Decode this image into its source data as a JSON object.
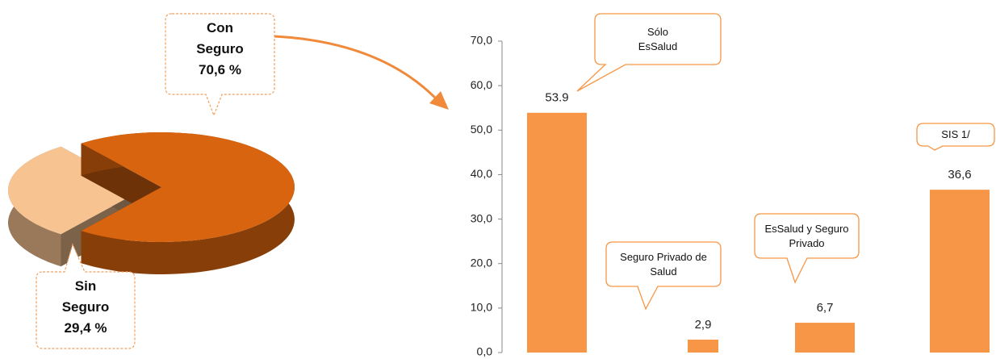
{
  "chart_data": [
    {
      "type": "pie3d",
      "categories": [
        "Con Seguro",
        "Sin Seguro"
      ],
      "values": [
        70.6,
        29.4
      ],
      "value_labels": [
        "70,6 %",
        "29,4 %"
      ],
      "colors": [
        "#d9640f",
        "#f6c391"
      ]
    },
    {
      "type": "bar",
      "categories": [
        "Sólo EsSalud",
        "Seguro Privado de Salud",
        "EsSalud y Seguro Privado",
        "SIS 1/"
      ],
      "values": [
        53.9,
        2.9,
        6.7,
        36.6
      ],
      "value_labels": [
        "53.9",
        "2,9",
        "6,7",
        "36,6"
      ],
      "color": "#f79646",
      "ylim": [
        0,
        70
      ],
      "yticks": [
        {
          "value": 0,
          "label": "0,0"
        },
        {
          "value": 10,
          "label": "10,0"
        },
        {
          "value": 20,
          "label": "20,0"
        },
        {
          "value": 30,
          "label": "30,0"
        },
        {
          "value": 40,
          "label": "40,0"
        },
        {
          "value": 50,
          "label": "50,0"
        },
        {
          "value": 60,
          "label": "60,0"
        },
        {
          "value": 70,
          "label": "70,0"
        }
      ]
    }
  ]
}
